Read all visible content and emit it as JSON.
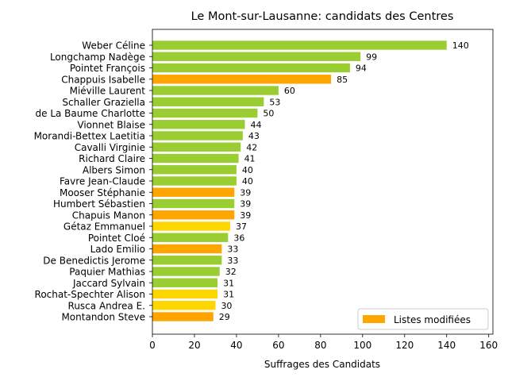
{
  "chart_data": {
    "type": "bar",
    "orientation": "horizontal",
    "title": "Le Mont-sur-Lausanne: candidats des Centres",
    "xlabel": "Suffrages des Candidats",
    "ylabel": "",
    "xlim": [
      0,
      162
    ],
    "xticks": [
      0,
      20,
      40,
      60,
      80,
      100,
      120,
      140,
      160
    ],
    "grid": false,
    "legend": {
      "placement": "lower-right",
      "entries": [
        {
          "label": "Listes modifiées",
          "color": "#ffa500"
        }
      ]
    },
    "colors": {
      "green": "#9acd32",
      "orange": "#ffa500",
      "yellow": "#ffd700"
    },
    "bars": [
      {
        "name": "Weber Céline",
        "value": 140,
        "color": "#9acd32"
      },
      {
        "name": "Longchamp Nadège",
        "value": 99,
        "color": "#9acd32"
      },
      {
        "name": "Pointet François",
        "value": 94,
        "color": "#9acd32"
      },
      {
        "name": "Chappuis Isabelle",
        "value": 85,
        "color": "#ffa500"
      },
      {
        "name": "Miéville Laurent",
        "value": 60,
        "color": "#9acd32"
      },
      {
        "name": "Schaller Graziella",
        "value": 53,
        "color": "#9acd32"
      },
      {
        "name": "de La Baume Charlotte",
        "value": 50,
        "color": "#9acd32"
      },
      {
        "name": "Vionnet Blaise",
        "value": 44,
        "color": "#9acd32"
      },
      {
        "name": "Morandi-Bettex Laetitia",
        "value": 43,
        "color": "#9acd32"
      },
      {
        "name": "Cavalli Virginie",
        "value": 42,
        "color": "#9acd32"
      },
      {
        "name": "Richard Claire",
        "value": 41,
        "color": "#9acd32"
      },
      {
        "name": "Albers Simon",
        "value": 40,
        "color": "#9acd32"
      },
      {
        "name": "Favre Jean-Claude",
        "value": 40,
        "color": "#9acd32"
      },
      {
        "name": "Mooser Stéphanie",
        "value": 39,
        "color": "#ffa500"
      },
      {
        "name": "Humbert Sébastien",
        "value": 39,
        "color": "#9acd32"
      },
      {
        "name": "Chapuis Manon",
        "value": 39,
        "color": "#ffa500"
      },
      {
        "name": "Gétaz Emmanuel",
        "value": 37,
        "color": "#ffd700"
      },
      {
        "name": "Pointet Cloé",
        "value": 36,
        "color": "#9acd32"
      },
      {
        "name": "Lado Emilio",
        "value": 33,
        "color": "#ffa500"
      },
      {
        "name": "De Benedictis Jerome",
        "value": 33,
        "color": "#9acd32"
      },
      {
        "name": "Paquier Mathias",
        "value": 32,
        "color": "#9acd32"
      },
      {
        "name": "Jaccard Sylvain",
        "value": 31,
        "color": "#9acd32"
      },
      {
        "name": "Rochat-Spechter Alison",
        "value": 31,
        "color": "#ffd700"
      },
      {
        "name": "Rusca Andrea E.",
        "value": 30,
        "color": "#ffd700"
      },
      {
        "name": "Montandon Steve",
        "value": 29,
        "color": "#ffa500"
      }
    ]
  }
}
